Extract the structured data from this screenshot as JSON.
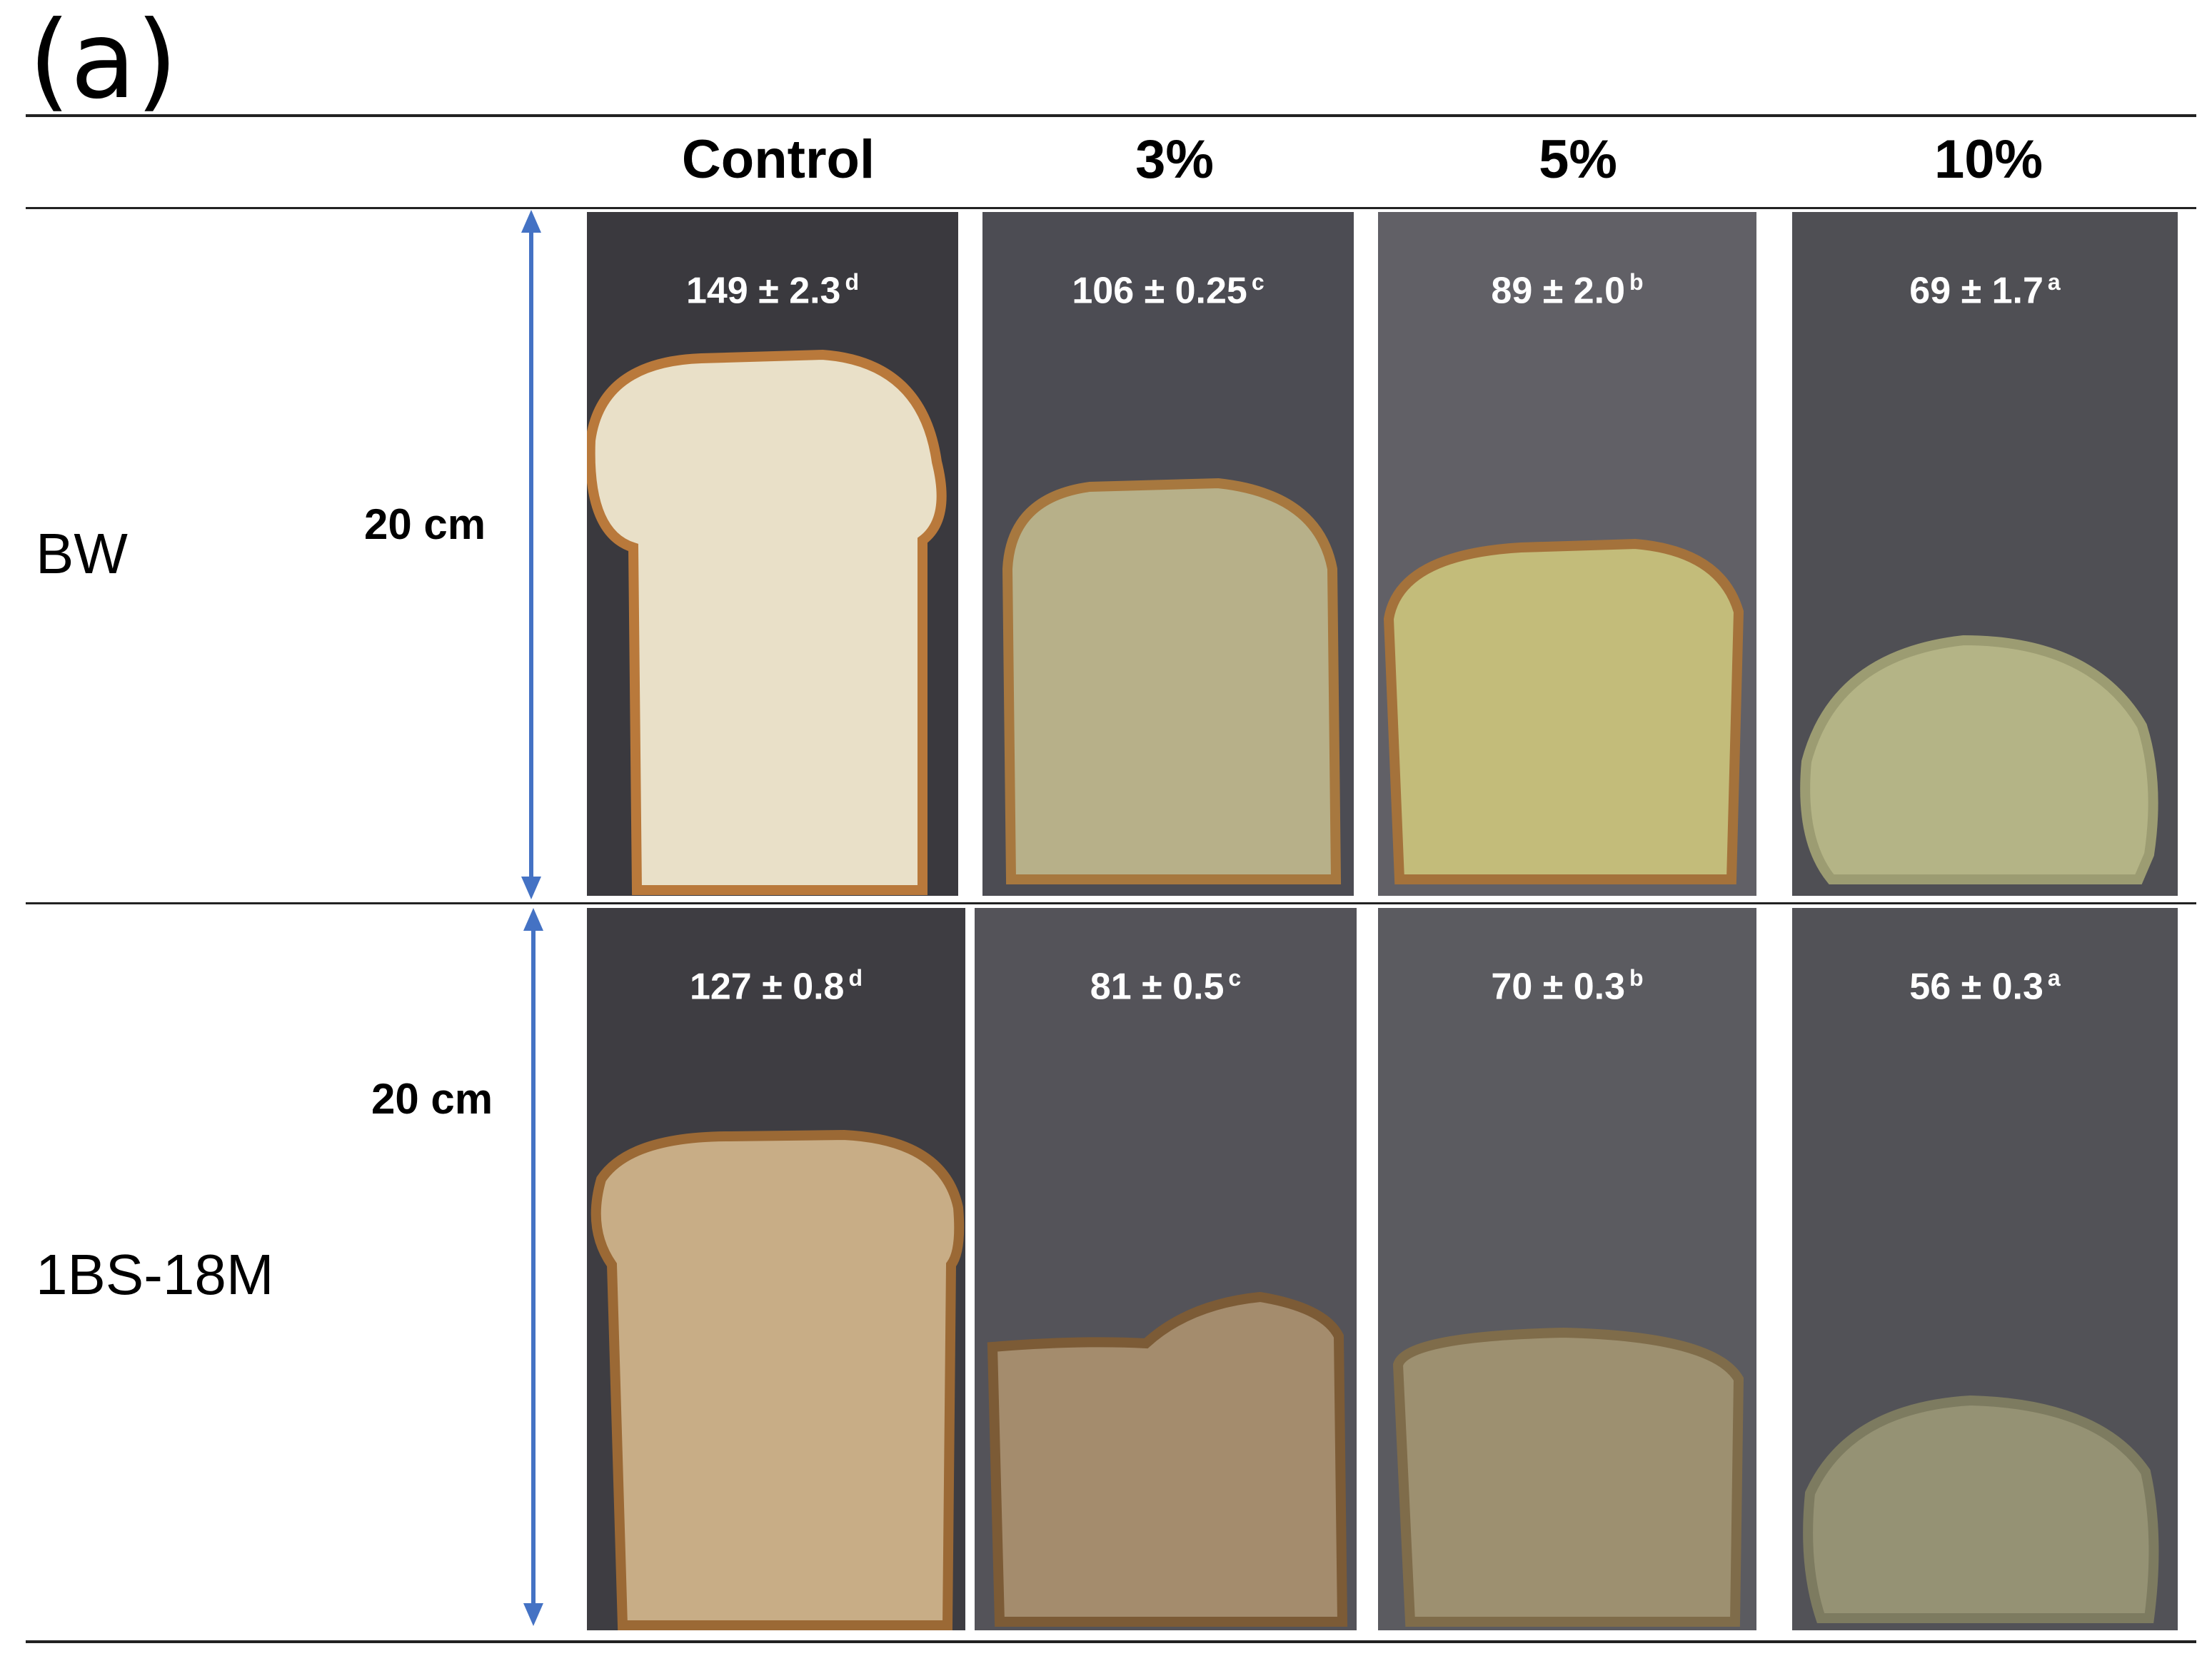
{
  "panel_label": "(a)",
  "columns": [
    "Control",
    "3%",
    "5%",
    "10%"
  ],
  "rows": [
    {
      "label": "BW",
      "scale": "20 cm",
      "cells": [
        {
          "mean": "149",
          "pm": "±",
          "sd": "2.3",
          "letter": "d",
          "bg": "#3a393e",
          "crumb": "#e9e0c8",
          "crust": "#b9793b"
        },
        {
          "mean": "106",
          "pm": "±",
          "sd": "0.25",
          "letter": "c",
          "bg": "#4c4c53",
          "crumb": "#b7b089",
          "crust": "#a7783f"
        },
        {
          "mean": "89",
          "pm": "±",
          "sd": "2.0",
          "letter": "b",
          "bg": "#616066",
          "crumb": "#c3bc7a",
          "crust": "#a4723b"
        },
        {
          "mean": "69",
          "pm": "±",
          "sd": "1.7",
          "letter": "a",
          "bg": "#4f4f54",
          "crumb": "#b4b486",
          "crust": "#9c9c72"
        }
      ]
    },
    {
      "label": "1BS-18M",
      "scale": "20 cm",
      "cells": [
        {
          "mean": "127",
          "pm": "±",
          "sd": "0.8",
          "letter": "d",
          "bg": "#3e3d42",
          "crumb": "#c8ad86",
          "crust": "#9b6935"
        },
        {
          "mean": "81",
          "pm": "±",
          "sd": "0.5",
          "letter": "c",
          "bg": "#545359",
          "crumb": "#a48c6d",
          "crust": "#7c5b36"
        },
        {
          "mean": "70",
          "pm": "±",
          "sd": "0.3",
          "letter": "b",
          "bg": "#5b5b60",
          "crumb": "#9d9070",
          "crust": "#7f6c4a"
        },
        {
          "mean": "56",
          "pm": "±",
          "sd": "0.3",
          "letter": "a",
          "bg": "#525257",
          "crumb": "#959274",
          "crust": "#7d7b60"
        }
      ]
    }
  ]
}
